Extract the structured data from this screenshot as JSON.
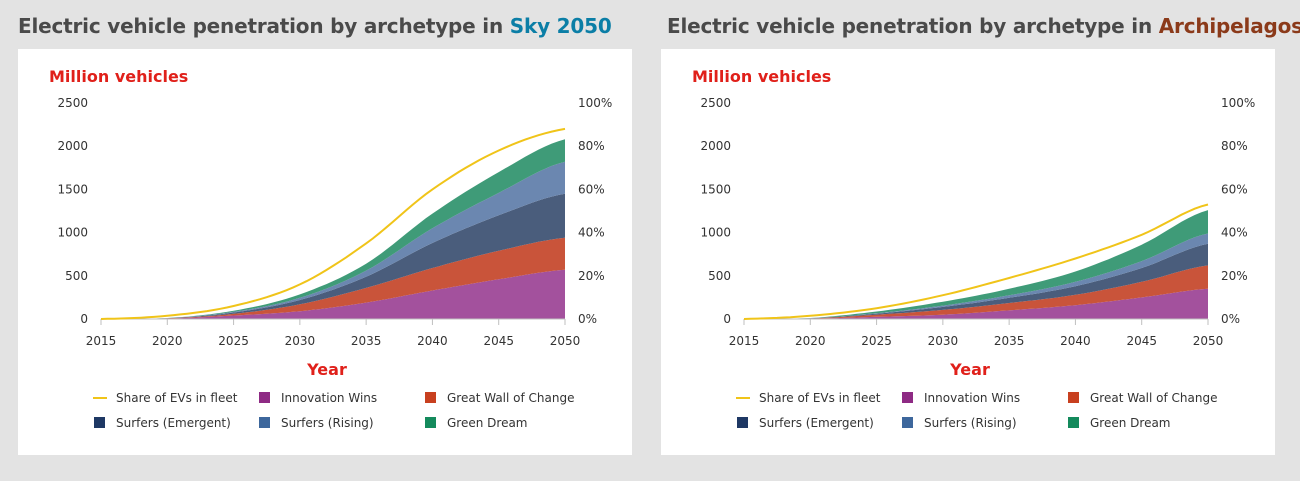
{
  "panels": [
    {
      "title_prefix": "Electric vehicle penetration by archetype in ",
      "title_highlight": "Sky 2050",
      "highlight_color": "#0b7ea6"
    },
    {
      "title_prefix": "Electric vehicle penetration by archetype in ",
      "title_highlight": "Archipelagos",
      "highlight_color": "#8b3a1a"
    }
  ],
  "chart_data": [
    {
      "type": "area",
      "title": "Electric vehicle penetration by archetype in Sky 2050",
      "ylabel": "Million vehicles",
      "xlabel": "Year",
      "ylim": [
        0,
        2500
      ],
      "y2lim": [
        0,
        100
      ],
      "x": [
        2015,
        2020,
        2025,
        2030,
        2035,
        2040,
        2045,
        2050
      ],
      "x_ticks": [
        "2015",
        "2020",
        "2025",
        "2030",
        "2035",
        "2040",
        "2045",
        "2050"
      ],
      "y_ticks": [
        "0",
        "500",
        "1000",
        "1500",
        "2000",
        "2500"
      ],
      "y2_ticks": [
        "0%",
        "20%",
        "40%",
        "60%",
        "80%",
        "100%"
      ],
      "series": [
        {
          "name": "Innovation Wins",
          "values": [
            0,
            5,
            40,
            90,
            190,
            330,
            460,
            570
          ],
          "color": "#a3519d"
        },
        {
          "name": "Great Wall of Change",
          "values": [
            0,
            3,
            20,
            80,
            170,
            260,
            330,
            370
          ],
          "color": "#c9543a"
        },
        {
          "name": "Surfers (Emergent)",
          "values": [
            0,
            2,
            15,
            50,
            130,
            290,
            410,
            510
          ],
          "color": "#4a5d7c"
        },
        {
          "name": "Surfers (Rising)",
          "values": [
            0,
            1,
            8,
            25,
            70,
            170,
            260,
            370
          ],
          "color": "#6b87b0"
        },
        {
          "name": "Green Dream",
          "values": [
            0,
            1,
            12,
            40,
            80,
            170,
            240,
            260
          ],
          "color": "#3f9b78"
        }
      ],
      "line": {
        "name": "Share of EVs in fleet",
        "values": [
          0,
          1.5,
          6,
          16,
          35,
          60,
          78,
          88
        ],
        "color": "#f0c419"
      },
      "legend_position": "bottom"
    },
    {
      "type": "area",
      "title": "Electric vehicle penetration by archetype in Archipelagos",
      "ylabel": "Million vehicles",
      "xlabel": "Year",
      "ylim": [
        0,
        2500
      ],
      "y2lim": [
        0,
        100
      ],
      "x": [
        2015,
        2020,
        2025,
        2030,
        2035,
        2040,
        2045,
        2050
      ],
      "x_ticks": [
        "2015",
        "2020",
        "2025",
        "2030",
        "2035",
        "2040",
        "2045",
        "2050"
      ],
      "y_ticks": [
        "0",
        "500",
        "1000",
        "1500",
        "2000",
        "2500"
      ],
      "y2_ticks": [
        "0%",
        "20%",
        "40%",
        "60%",
        "80%",
        "100%"
      ],
      "series": [
        {
          "name": "Innovation Wins",
          "values": [
            0,
            4,
            25,
            50,
            100,
            160,
            250,
            350
          ],
          "color": "#a3519d"
        },
        {
          "name": "Great Wall of Change",
          "values": [
            0,
            3,
            25,
            55,
            85,
            120,
            180,
            270
          ],
          "color": "#c9543a"
        },
        {
          "name": "Surfers (Emergent)",
          "values": [
            0,
            2,
            12,
            35,
            60,
            100,
            160,
            250
          ],
          "color": "#4a5d7c"
        },
        {
          "name": "Surfers (Rising)",
          "values": [
            0,
            1,
            5,
            15,
            30,
            50,
            80,
            120
          ],
          "color": "#6b87b0"
        },
        {
          "name": "Green Dream",
          "values": [
            0,
            2,
            20,
            45,
            75,
            120,
            190,
            270
          ],
          "color": "#3f9b78"
        }
      ],
      "line": {
        "name": "Share of EVs in fleet",
        "values": [
          0,
          1.5,
          5,
          11,
          19,
          28,
          39,
          53
        ],
        "color": "#f0c419"
      },
      "legend_position": "bottom"
    }
  ],
  "legend_items": [
    {
      "name": "Share of EVs in fleet",
      "kind": "line",
      "color": "#f0c419"
    },
    {
      "name": "Innovation Wins",
      "kind": "swatch",
      "color": "#8e2a84"
    },
    {
      "name": "Great Wall of Change",
      "kind": "swatch",
      "color": "#c8401f"
    },
    {
      "name": "Surfers (Emergent)",
      "kind": "swatch",
      "color": "#1e3864"
    },
    {
      "name": "Surfers (Rising)",
      "kind": "swatch",
      "color": "#3d679c"
    },
    {
      "name": "Green Dream",
      "kind": "swatch",
      "color": "#148a5c"
    }
  ],
  "colors": {
    "ylabel": "#e0201a",
    "axis_text": "#333333",
    "axis_line": "#bfbfbf"
  }
}
